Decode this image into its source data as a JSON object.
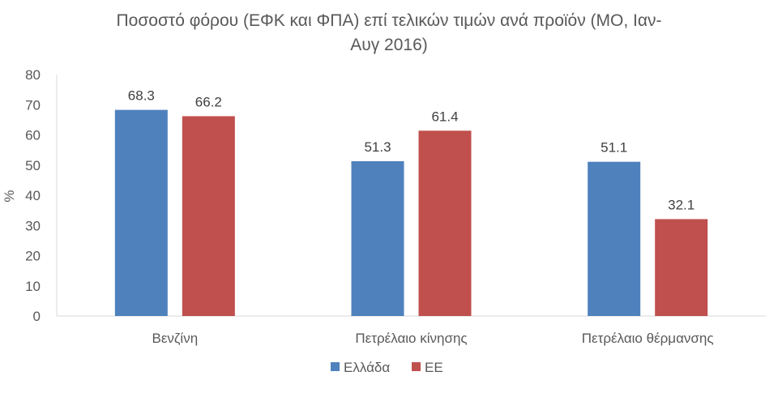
{
  "chart_data": {
    "type": "bar",
    "title": "Ποσοστό φόρου (ΕΦΚ και ΦΠΑ) επί τελικών τιμών ανά προϊόν (ΜΟ, Ιαν-Αυγ 2016)",
    "title_lines": [
      "Ποσοστό φόρου (ΕΦΚ και ΦΠΑ) επί τελικών τιμών ανά προϊόν (ΜΟ, Ιαν-",
      "Αυγ 2016)"
    ],
    "categories": [
      "Βενζίνη",
      "Πετρέλαιο κίνησης",
      "Πετρέλαιο θέρμανσης"
    ],
    "series": [
      {
        "name": "Ελλάδα",
        "values": [
          68.3,
          51.3,
          51.1
        ],
        "color": "#4f81bd"
      },
      {
        "name": "ΕΕ",
        "values": [
          66.2,
          61.4,
          32.1
        ],
        "color": "#c0504d"
      }
    ],
    "ylabel": "%",
    "xlabel": "",
    "ylim": [
      0,
      80
    ],
    "yticks": [
      0,
      10,
      20,
      30,
      40,
      50,
      60,
      70,
      80
    ],
    "grid": false,
    "legend_position": "bottom",
    "data_labels": true
  }
}
